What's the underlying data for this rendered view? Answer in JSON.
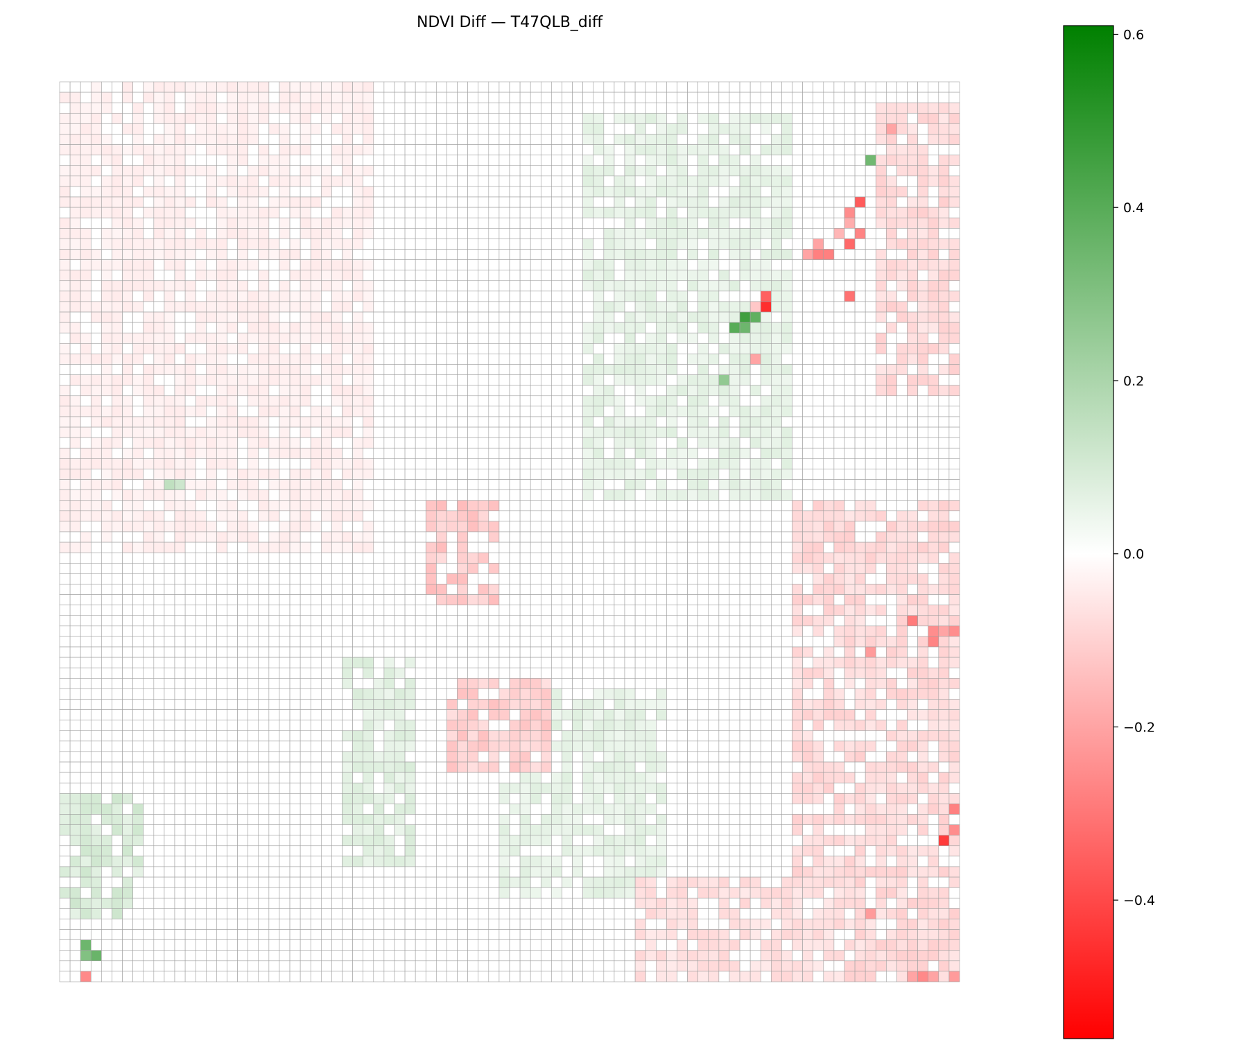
{
  "chart_data": {
    "type": "heatmap",
    "title": "NDVI Diff — T47QLB_diff",
    "xlabel": "",
    "ylabel": "",
    "grid": true,
    "axes_visible": false,
    "grid_cells": [
      86,
      86
    ],
    "color_scale": {
      "name": "red-white-green diverging",
      "min_color": "#ff0000",
      "mid_color": "#ffffff",
      "max_color": "#008000",
      "vmin": -0.56,
      "vcenter": 0.0,
      "vmax": 0.61
    },
    "colorbar": {
      "ticks": [
        0.6,
        0.4,
        0.2,
        0.0,
        -0.2,
        -0.4
      ],
      "tick_labels": [
        "0.6",
        "0.4",
        "0.2",
        "0.0",
        "−0.2",
        "−0.4"
      ]
    },
    "background_value": 0.0,
    "regions": [
      {
        "label": "greening band NW-SE (central-east)",
        "col_range": [
          50,
          70
        ],
        "row_range": [
          3,
          40
        ],
        "value": 0.05
      },
      {
        "label": "greening band (west-central)",
        "col_range": [
          27,
          34
        ],
        "row_range": [
          55,
          75
        ],
        "value": 0.06
      },
      {
        "label": "greening band (south-central)",
        "col_range": [
          42,
          58
        ],
        "row_range": [
          58,
          78
        ],
        "value": 0.05
      },
      {
        "label": "greening area (SW corner)",
        "col_range": [
          0,
          8
        ],
        "row_range": [
          68,
          80
        ],
        "value": 0.08
      },
      {
        "label": "decline area (NE corner)",
        "col_range": [
          78,
          86
        ],
        "row_range": [
          2,
          30
        ],
        "value": -0.07
      },
      {
        "label": "decline area (central)",
        "col_range": [
          35,
          42
        ],
        "row_range": [
          40,
          50
        ],
        "value": -0.1
      },
      {
        "label": "decline area (central-south)",
        "col_range": [
          37,
          47
        ],
        "row_range": [
          57,
          66
        ],
        "value": -0.09
      },
      {
        "label": "decline area (east)",
        "col_range": [
          70,
          86
        ],
        "row_range": [
          40,
          86
        ],
        "value": -0.07
      },
      {
        "label": "decline area (south-east)",
        "col_range": [
          55,
          75
        ],
        "row_range": [
          76,
          86
        ],
        "value": -0.06
      },
      {
        "label": "decline area (north-west)",
        "col_range": [
          0,
          30
        ],
        "row_range": [
          0,
          45
        ],
        "value": -0.03
      }
    ],
    "notable_cells": [
      {
        "row": 20,
        "col": 75,
        "value": -0.31
      },
      {
        "row": 14,
        "col": 76,
        "value": -0.27
      },
      {
        "row": 11,
        "col": 76,
        "value": -0.36
      },
      {
        "row": 12,
        "col": 75,
        "value": -0.25
      },
      {
        "row": 15,
        "col": 75,
        "value": -0.33
      },
      {
        "row": 16,
        "col": 71,
        "value": -0.2
      },
      {
        "row": 16,
        "col": 72,
        "value": -0.28
      },
      {
        "row": 16,
        "col": 73,
        "value": -0.28
      },
      {
        "row": 15,
        "col": 72,
        "value": -0.2
      },
      {
        "row": 14,
        "col": 74,
        "value": -0.16
      },
      {
        "row": 13,
        "col": 75,
        "value": -0.18
      },
      {
        "row": 4,
        "col": 79,
        "value": -0.2
      },
      {
        "row": 7,
        "col": 77,
        "value": 0.34
      },
      {
        "row": 21,
        "col": 66,
        "value": -0.12
      },
      {
        "row": 20,
        "col": 67,
        "value": -0.35
      },
      {
        "row": 21,
        "col": 67,
        "value": -0.46
      },
      {
        "row": 22,
        "col": 65,
        "value": 0.46
      },
      {
        "row": 22,
        "col": 66,
        "value": 0.38
      },
      {
        "row": 23,
        "col": 64,
        "value": 0.4
      },
      {
        "row": 23,
        "col": 65,
        "value": 0.35
      },
      {
        "row": 26,
        "col": 66,
        "value": -0.2
      },
      {
        "row": 28,
        "col": 63,
        "value": 0.26
      },
      {
        "row": 38,
        "col": 10,
        "value": 0.15
      },
      {
        "row": 38,
        "col": 11,
        "value": 0.12
      },
      {
        "row": 51,
        "col": 81,
        "value": -0.29
      },
      {
        "row": 52,
        "col": 83,
        "value": -0.25
      },
      {
        "row": 52,
        "col": 84,
        "value": -0.2
      },
      {
        "row": 52,
        "col": 85,
        "value": -0.25
      },
      {
        "row": 53,
        "col": 83,
        "value": -0.27
      },
      {
        "row": 54,
        "col": 77,
        "value": -0.22
      },
      {
        "row": 69,
        "col": 85,
        "value": -0.28
      },
      {
        "row": 71,
        "col": 85,
        "value": -0.25
      },
      {
        "row": 72,
        "col": 84,
        "value": -0.43
      },
      {
        "row": 79,
        "col": 77,
        "value": -0.22
      },
      {
        "row": 82,
        "col": 2,
        "value": 0.35
      },
      {
        "row": 83,
        "col": 2,
        "value": 0.3
      },
      {
        "row": 83,
        "col": 3,
        "value": 0.36
      },
      {
        "row": 85,
        "col": 2,
        "value": -0.26
      },
      {
        "row": 85,
        "col": 81,
        "value": -0.2
      },
      {
        "row": 85,
        "col": 82,
        "value": -0.26
      },
      {
        "row": 85,
        "col": 83,
        "value": -0.2
      },
      {
        "row": 85,
        "col": 85,
        "value": -0.22
      }
    ]
  }
}
